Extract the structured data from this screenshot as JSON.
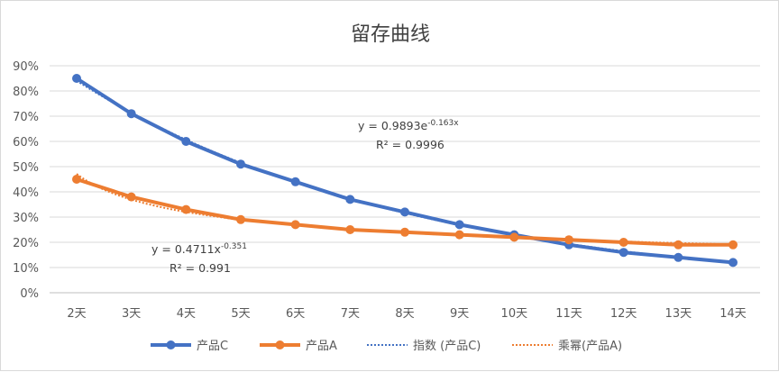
{
  "chart_data": {
    "type": "line",
    "title": "留存曲线",
    "categories": [
      "2天",
      "3天",
      "4天",
      "5天",
      "6天",
      "7天",
      "8天",
      "9天",
      "10天",
      "11天",
      "12天",
      "13天",
      "14天"
    ],
    "y_ticks": [
      "0%",
      "10%",
      "20%",
      "30%",
      "40%",
      "50%",
      "60%",
      "70%",
      "80%",
      "90%"
    ],
    "ylim": [
      0,
      0.9
    ],
    "grid": "horizontal",
    "legend_position": "bottom",
    "series": [
      {
        "name": "产品C",
        "color": "#4472c4",
        "values": [
          0.85,
          0.71,
          0.6,
          0.51,
          0.44,
          0.37,
          0.32,
          0.27,
          0.23,
          0.19,
          0.16,
          0.14,
          0.12
        ]
      },
      {
        "name": "产品A",
        "color": "#ed7d31",
        "values": [
          0.45,
          0.38,
          0.33,
          0.29,
          0.27,
          0.25,
          0.24,
          0.23,
          0.22,
          0.21,
          0.2,
          0.19,
          0.19
        ]
      }
    ],
    "trendlines": [
      {
        "name": "指数 (产品C)",
        "color": "#4472c4",
        "type": "exponential",
        "a": 0.9893,
        "b": -0.163,
        "equation": {
          "prefix": "y = 0.9893e",
          "exponent": "-0.163x",
          "r2": "R² = 0.9996"
        }
      },
      {
        "name": "乘幂(产品A)",
        "color": "#ed7d31",
        "type": "power",
        "a": 0.4711,
        "b": -0.351,
        "equation": {
          "prefix": "y = 0.4711x",
          "exponent": "-0.351",
          "r2": "R² = 0.991"
        }
      }
    ]
  }
}
